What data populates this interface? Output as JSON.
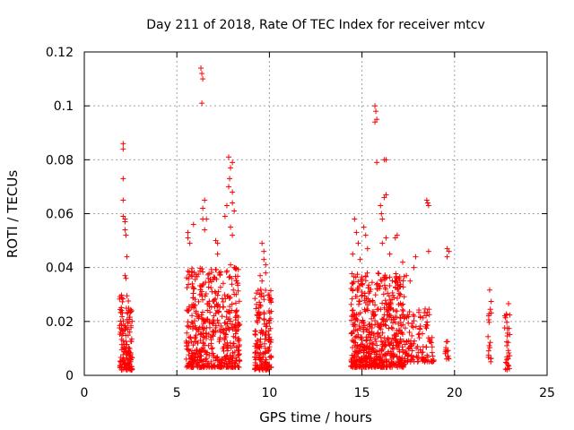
{
  "chart_data": {
    "type": "scatter",
    "title": "Day 211 of 2018, Rate Of TEC Index for receiver mtcv",
    "xlabel": "GPS time / hours",
    "ylabel": "ROTI / TECUs",
    "xlim": [
      0,
      25
    ],
    "ylim": [
      0,
      0.12
    ],
    "xticks": [
      0,
      5,
      10,
      15,
      20,
      25
    ],
    "xtick_labels": [
      "0",
      "5",
      "10",
      "15",
      "20",
      "25"
    ],
    "yticks": [
      0,
      0.02,
      0.04,
      0.06,
      0.08,
      0.1,
      0.12
    ],
    "ytick_labels": [
      "0",
      "0.02",
      "0.04",
      "0.06",
      "0.08",
      "0.1",
      "0.12"
    ],
    "grid": true,
    "marker": "+",
    "color": "#ff0000",
    "series": [
      {
        "name": "ROTI",
        "clusters": [
          {
            "x_range": [
              1.9,
              2.6
            ],
            "y_range": [
              0.002,
              0.03
            ],
            "count": 140
          },
          {
            "x_range": [
              5.5,
              8.4
            ],
            "y_range": [
              0.003,
              0.04
            ],
            "count": 520
          },
          {
            "x_range": [
              9.2,
              10.1
            ],
            "y_range": [
              0.002,
              0.033
            ],
            "count": 170
          },
          {
            "x_range": [
              14.4,
              17.3
            ],
            "y_range": [
              0.003,
              0.038
            ],
            "count": 620
          },
          {
            "x_range": [
              17.3,
              18.9
            ],
            "y_range": [
              0.005,
              0.025
            ],
            "count": 120
          },
          {
            "x_range": [
              19.5,
              19.7
            ],
            "y_range": [
              0.006,
              0.014
            ],
            "count": 12
          },
          {
            "x_range": [
              21.8,
              22.0
            ],
            "y_range": [
              0.005,
              0.034
            ],
            "count": 18
          },
          {
            "x_range": [
              22.7,
              23.0
            ],
            "y_range": [
              0.002,
              0.027
            ],
            "count": 30
          }
        ],
        "points": [
          [
            2.1,
            0.086
          ],
          [
            2.1,
            0.084
          ],
          [
            2.1,
            0.073
          ],
          [
            2.1,
            0.065
          ],
          [
            2.1,
            0.059
          ],
          [
            2.2,
            0.058
          ],
          [
            2.2,
            0.057
          ],
          [
            2.2,
            0.054
          ],
          [
            2.25,
            0.052
          ],
          [
            2.3,
            0.044
          ],
          [
            2.2,
            0.037
          ],
          [
            2.25,
            0.036
          ],
          [
            5.6,
            0.053
          ],
          [
            5.6,
            0.051
          ],
          [
            5.7,
            0.049
          ],
          [
            5.9,
            0.056
          ],
          [
            6.3,
            0.114
          ],
          [
            6.35,
            0.112
          ],
          [
            6.4,
            0.11
          ],
          [
            6.35,
            0.101
          ],
          [
            6.5,
            0.065
          ],
          [
            6.4,
            0.062
          ],
          [
            6.4,
            0.058
          ],
          [
            6.5,
            0.054
          ],
          [
            6.6,
            0.058
          ],
          [
            7.1,
            0.05
          ],
          [
            7.2,
            0.049
          ],
          [
            7.2,
            0.045
          ],
          [
            7.6,
            0.059
          ],
          [
            7.7,
            0.063
          ],
          [
            7.8,
            0.081
          ],
          [
            8.0,
            0.079
          ],
          [
            7.9,
            0.077
          ],
          [
            7.85,
            0.073
          ],
          [
            7.8,
            0.07
          ],
          [
            8.0,
            0.068
          ],
          [
            8.0,
            0.064
          ],
          [
            8.1,
            0.061
          ],
          [
            7.9,
            0.055
          ],
          [
            8.0,
            0.052
          ],
          [
            7.9,
            0.041
          ],
          [
            8.1,
            0.04
          ],
          [
            9.6,
            0.049
          ],
          [
            9.7,
            0.046
          ],
          [
            9.7,
            0.043
          ],
          [
            9.8,
            0.041
          ],
          [
            9.8,
            0.038
          ],
          [
            9.5,
            0.037
          ],
          [
            9.6,
            0.035
          ],
          [
            14.6,
            0.058
          ],
          [
            14.7,
            0.053
          ],
          [
            14.8,
            0.049
          ],
          [
            15.1,
            0.055
          ],
          [
            15.2,
            0.052
          ],
          [
            14.5,
            0.045
          ],
          [
            14.9,
            0.043
          ],
          [
            15.3,
            0.047
          ],
          [
            15.7,
            0.1
          ],
          [
            15.75,
            0.098
          ],
          [
            15.8,
            0.095
          ],
          [
            15.7,
            0.094
          ],
          [
            15.8,
            0.079
          ],
          [
            16.0,
            0.063
          ],
          [
            16.05,
            0.06
          ],
          [
            16.1,
            0.058
          ],
          [
            16.2,
            0.08
          ],
          [
            16.3,
            0.08
          ],
          [
            16.3,
            0.067
          ],
          [
            16.2,
            0.066
          ],
          [
            16.3,
            0.051
          ],
          [
            16.1,
            0.049
          ],
          [
            16.5,
            0.045
          ],
          [
            16.8,
            0.051
          ],
          [
            16.9,
            0.052
          ],
          [
            17.2,
            0.042
          ],
          [
            17.4,
            0.037
          ],
          [
            17.6,
            0.035
          ],
          [
            17.8,
            0.04
          ],
          [
            17.9,
            0.044
          ],
          [
            18.5,
            0.065
          ],
          [
            18.55,
            0.064
          ],
          [
            18.6,
            0.063
          ],
          [
            18.6,
            0.046
          ],
          [
            19.6,
            0.047
          ],
          [
            19.7,
            0.046
          ],
          [
            19.6,
            0.044
          ]
        ]
      }
    ]
  }
}
